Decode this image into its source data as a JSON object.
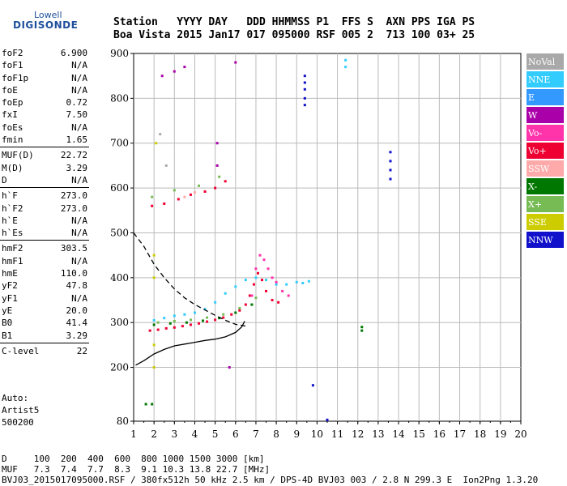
{
  "logo": {
    "line1": "Lowell",
    "line2": "DIGISONDE"
  },
  "header": {
    "row1": "Station   YYYY DAY   DDD HHMMSS P1  FFS S  AXN PPS IGA PS",
    "row2": "Boa Vista 2015 Jan17 017 095000 RSF 005 2  713 100 03+ 25"
  },
  "params": {
    "group1": [
      {
        "name": "foF2",
        "value": "6.900"
      },
      {
        "name": "foF1",
        "value": "N/A"
      },
      {
        "name": "foF1p",
        "value": "N/A"
      },
      {
        "name": "foE",
        "value": "N/A"
      },
      {
        "name": "foEp",
        "value": "0.72"
      },
      {
        "name": "fxI",
        "value": "7.50"
      },
      {
        "name": "foEs",
        "value": "N/A"
      },
      {
        "name": "fmin",
        "value": "1.65"
      }
    ],
    "group2": [
      {
        "name": "MUF(D)",
        "value": "22.72"
      },
      {
        "name": "M(D)",
        "value": "3.29"
      },
      {
        "name": "D",
        "value": "N/A"
      }
    ],
    "group3": [
      {
        "name": "h`F",
        "value": "273.0"
      },
      {
        "name": "h`F2",
        "value": "273.0"
      },
      {
        "name": "h`E",
        "value": "N/A"
      },
      {
        "name": "h`Es",
        "value": "N/A"
      }
    ],
    "group4": [
      {
        "name": "hmF2",
        "value": "303.5"
      },
      {
        "name": "hmF1",
        "value": "N/A"
      },
      {
        "name": "hmE",
        "value": "110.0"
      },
      {
        "name": "yF2",
        "value": "47.8"
      },
      {
        "name": "yF1",
        "value": "N/A"
      },
      {
        "name": "yE",
        "value": "20.0"
      },
      {
        "name": "B0",
        "value": "41.4"
      },
      {
        "name": "B1",
        "value": "3.29"
      }
    ],
    "group5": [
      {
        "name": "C-level",
        "value": "22"
      }
    ]
  },
  "auto": {
    "line1": "Auto:",
    "line2": "Artist5",
    "line3": "500200"
  },
  "legend": [
    {
      "label": "NoVal",
      "color": "#a9a9a9"
    },
    {
      "label": "NNE",
      "color": "#33ccff"
    },
    {
      "label": "E",
      "color": "#3399ff"
    },
    {
      "label": "W",
      "color": "#aa00aa"
    },
    {
      "label": "Vo-",
      "color": "#ff33aa"
    },
    {
      "label": "Vo+",
      "color": "#ee0033"
    },
    {
      "label": "SSW",
      "color": "#ffaaaa"
    },
    {
      "label": "X-",
      "color": "#007700"
    },
    {
      "label": "X+",
      "color": "#77bb55"
    },
    {
      "label": "SSE",
      "color": "#cccc00"
    },
    {
      "label": "NNW",
      "color": "#1111cc"
    }
  ],
  "footer": {
    "line1": "D     100  200  400  600  800 1000 1500 3000 [km]",
    "line2": "MUF   7.3  7.4  7.7  8.3  9.1 10.3 13.8 22.7 [MHz]",
    "line3": "BVJ03_2015017095000.RSF / 380fx512h 50 kHz 2.5 km / DPS-4D BVJ03 003 / 2.8 N 299.3 E  Ion2Png 1.3.20"
  },
  "chart_data": {
    "type": "scatter",
    "title": "",
    "xlabel": "",
    "ylabel": "",
    "xlim": [
      1,
      20
    ],
    "ylim": [
      80,
      900
    ],
    "x_ticks": [
      1,
      2,
      3,
      4,
      5,
      6,
      7,
      8,
      9,
      10,
      11,
      12,
      13,
      14,
      15,
      16,
      17,
      18,
      19,
      20
    ],
    "y_ticks": [
      80,
      200,
      300,
      400,
      500,
      600,
      700,
      800,
      900
    ],
    "grid": true,
    "legend_position": "right",
    "series": [
      {
        "name": "Vo+",
        "color": "#ee0033",
        "points": [
          [
            1.8,
            282
          ],
          [
            2.2,
            284
          ],
          [
            2.6,
            287
          ],
          [
            3.0,
            289
          ],
          [
            3.4,
            292
          ],
          [
            3.8,
            295
          ],
          [
            4.2,
            298
          ],
          [
            4.6,
            302
          ],
          [
            5.0,
            306
          ],
          [
            5.4,
            311
          ],
          [
            5.8,
            318
          ],
          [
            6.2,
            327
          ],
          [
            6.5,
            340
          ],
          [
            6.7,
            360
          ],
          [
            6.9,
            385
          ],
          [
            7.1,
            410
          ],
          [
            7.3,
            395
          ],
          [
            7.5,
            370
          ],
          [
            7.8,
            350
          ],
          [
            8.1,
            345
          ],
          [
            1.9,
            560
          ],
          [
            2.5,
            565
          ],
          [
            3.2,
            575
          ],
          [
            3.8,
            585
          ],
          [
            4.5,
            592
          ],
          [
            5.0,
            600
          ],
          [
            5.5,
            615
          ]
        ]
      },
      {
        "name": "NNE",
        "color": "#33ccff",
        "points": [
          [
            2.0,
            305
          ],
          [
            2.5,
            310
          ],
          [
            3.0,
            315
          ],
          [
            3.5,
            318
          ],
          [
            4.0,
            322
          ],
          [
            4.5,
            330
          ],
          [
            5.0,
            345
          ],
          [
            5.5,
            365
          ],
          [
            6.0,
            380
          ],
          [
            6.5,
            395
          ],
          [
            7.0,
            400
          ],
          [
            7.5,
            395
          ],
          [
            8.0,
            385
          ],
          [
            8.5,
            385
          ],
          [
            9.0,
            390
          ],
          [
            9.3,
            388
          ],
          [
            9.6,
            392
          ],
          [
            11.4,
            870
          ],
          [
            11.4,
            885
          ]
        ]
      },
      {
        "name": "Vo-",
        "color": "#ff33aa",
        "points": [
          [
            6.8,
            360
          ],
          [
            7.0,
            420
          ],
          [
            7.2,
            450
          ],
          [
            7.4,
            440
          ],
          [
            7.6,
            420
          ],
          [
            7.8,
            400
          ],
          [
            8.0,
            390
          ],
          [
            8.3,
            370
          ],
          [
            8.6,
            360
          ]
        ]
      },
      {
        "name": "X-",
        "color": "#007700",
        "points": [
          [
            2.0,
            295
          ],
          [
            2.8,
            298
          ],
          [
            3.6,
            300
          ],
          [
            4.4,
            304
          ],
          [
            5.2,
            310
          ],
          [
            6.0,
            322
          ],
          [
            6.8,
            340
          ],
          [
            1.6,
            118
          ],
          [
            1.9,
            118
          ],
          [
            12.2,
            282
          ],
          [
            12.2,
            290
          ]
        ]
      },
      {
        "name": "X+",
        "color": "#77bb55",
        "points": [
          [
            2.2,
            300
          ],
          [
            3.0,
            303
          ],
          [
            3.8,
            306
          ],
          [
            4.6,
            311
          ],
          [
            5.4,
            318
          ],
          [
            6.2,
            332
          ],
          [
            7.0,
            355
          ],
          [
            1.9,
            580
          ],
          [
            3.0,
            595
          ],
          [
            4.2,
            605
          ],
          [
            5.2,
            625
          ]
        ]
      },
      {
        "name": "W",
        "color": "#aa00aa",
        "points": [
          [
            2.4,
            850
          ],
          [
            3.0,
            860
          ],
          [
            3.5,
            870
          ],
          [
            5.1,
            650
          ],
          [
            5.1,
            700
          ],
          [
            6.0,
            880
          ],
          [
            5.7,
            200
          ]
        ]
      },
      {
        "name": "NNW",
        "color": "#1111cc",
        "points": [
          [
            9.4,
            785
          ],
          [
            9.4,
            800
          ],
          [
            9.4,
            820
          ],
          [
            9.4,
            835
          ],
          [
            9.4,
            850
          ],
          [
            13.6,
            620
          ],
          [
            13.6,
            640
          ],
          [
            13.6,
            660
          ],
          [
            13.6,
            680
          ],
          [
            10.5,
            83
          ],
          [
            9.8,
            160
          ]
        ]
      },
      {
        "name": "SSE",
        "color": "#cccc00",
        "points": [
          [
            2.0,
            200
          ],
          [
            2.0,
            250
          ],
          [
            2.0,
            400
          ],
          [
            2.0,
            450
          ],
          [
            2.1,
            700
          ]
        ]
      },
      {
        "name": "SSW",
        "color": "#ffaaaa",
        "points": [
          [
            3.5,
            580
          ],
          [
            4.0,
            590
          ]
        ]
      },
      {
        "name": "NoVal",
        "color": "#a9a9a9",
        "points": [
          [
            2.3,
            720
          ],
          [
            2.6,
            650
          ]
        ]
      }
    ],
    "profile_curve": {
      "style": "solid",
      "color": "#000000",
      "points": [
        [
          1.1,
          205
        ],
        [
          1.5,
          215
        ],
        [
          2.0,
          230
        ],
        [
          2.5,
          240
        ],
        [
          3.0,
          248
        ],
        [
          3.5,
          252
        ],
        [
          4.0,
          256
        ],
        [
          4.5,
          260
        ],
        [
          5.0,
          263
        ],
        [
          5.5,
          268
        ],
        [
          6.0,
          278
        ],
        [
          6.3,
          290
        ],
        [
          6.45,
          303
        ]
      ]
    },
    "virtual_height_curve": {
      "style": "dashed",
      "color": "#000000",
      "points": [
        [
          1.0,
          500
        ],
        [
          1.5,
          470
        ],
        [
          2.0,
          430
        ],
        [
          2.5,
          400
        ],
        [
          3.0,
          375
        ],
        [
          3.5,
          355
        ],
        [
          4.0,
          340
        ],
        [
          4.5,
          328
        ],
        [
          5.0,
          316
        ],
        [
          5.5,
          305
        ],
        [
          6.0,
          296
        ],
        [
          6.5,
          292
        ]
      ]
    }
  }
}
